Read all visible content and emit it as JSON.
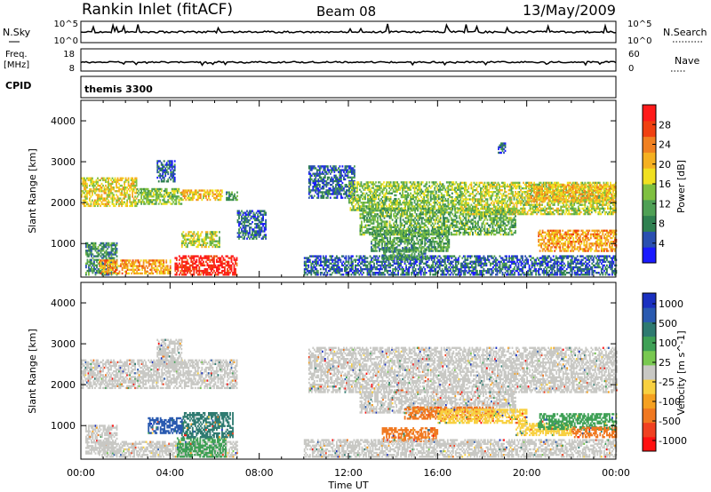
{
  "header": {
    "station": "Rankin Inlet (fitACF)",
    "beam": "Beam 08",
    "date": "13/May/2009"
  },
  "summary_panels": {
    "nsky": {
      "label": "N.Sky",
      "ticks_left": [
        "10^5",
        "10^0"
      ],
      "right_label": "N.Search",
      "ticks_right": [
        "10^5",
        "10^0"
      ]
    },
    "freq": {
      "label_line1": "Freq.",
      "label_line2": "[MHz]",
      "ticks_left": [
        "18",
        "8"
      ],
      "right_label": "Nave",
      "ticks_right": [
        "60",
        "0"
      ]
    },
    "cpid": {
      "label": "CPID",
      "value": "themis 3300"
    }
  },
  "colors": {
    "power_scale": [
      "#1a1aff",
      "#2a4fb0",
      "#2f8050",
      "#4fa055",
      "#7fc040",
      "#f0e020",
      "#f5b020",
      "#f08020",
      "#f04010",
      "#ff1a1a"
    ],
    "velocity_scale": [
      "#ff1010",
      "#f04020",
      "#f07820",
      "#f5a020",
      "#f8d040",
      "#c8c8c4",
      "#78c850",
      "#3ea055",
      "#2e7a70",
      "#2a5ab0",
      "#1a30c0"
    ],
    "ground_scatter": "#c8c8c4"
  },
  "chart_data": [
    {
      "type": "heatmap",
      "title": "Power",
      "ylabel": "Slant Range [km]",
      "xlabel": "",
      "x_ticks": [
        "00:00",
        "04:00",
        "08:00",
        "12:00",
        "16:00",
        "20:00",
        "00:00"
      ],
      "x_range_hours": [
        0,
        24
      ],
      "ylim": [
        180,
        4500
      ],
      "y_ticks": [
        1000,
        2000,
        3000,
        4000
      ],
      "colorbar": {
        "label": "Power [dB]",
        "range": [
          0,
          32
        ],
        "ticks": [
          4,
          8,
          12,
          16,
          20,
          24,
          28
        ]
      },
      "regions": [
        {
          "t0": 0.0,
          "t1": 2.5,
          "r0": 1900,
          "r1": 2600,
          "v": 18
        },
        {
          "t0": 2.5,
          "t1": 4.5,
          "r0": 1950,
          "r1": 2350,
          "v": 14
        },
        {
          "t0": 4.5,
          "t1": 6.3,
          "r0": 2050,
          "r1": 2300,
          "v": 20
        },
        {
          "t0": 6.5,
          "t1": 7.0,
          "r0": 2050,
          "r1": 2250,
          "v": 10
        },
        {
          "t0": 3.4,
          "t1": 4.2,
          "r0": 2500,
          "r1": 3000,
          "v": 6
        },
        {
          "t0": 0.2,
          "t1": 1.6,
          "r0": 220,
          "r1": 1000,
          "v": 9
        },
        {
          "t0": 0.8,
          "t1": 4.0,
          "r0": 250,
          "r1": 600,
          "v": 22
        },
        {
          "t0": 4.2,
          "t1": 7.0,
          "r0": 220,
          "r1": 700,
          "v": 30
        },
        {
          "t0": 4.5,
          "t1": 6.2,
          "r0": 900,
          "r1": 1300,
          "v": 16
        },
        {
          "t0": 7.0,
          "t1": 8.3,
          "r0": 1100,
          "r1": 1800,
          "v": 6
        },
        {
          "t0": 10.2,
          "t1": 12.3,
          "r0": 2100,
          "r1": 2900,
          "v": 6
        },
        {
          "t0": 12.0,
          "t1": 17.0,
          "r0": 1800,
          "r1": 2500,
          "v": 14
        },
        {
          "t0": 12.5,
          "t1": 19.5,
          "r0": 1200,
          "r1": 1850,
          "v": 12
        },
        {
          "t0": 17.0,
          "t1": 24.0,
          "r0": 1700,
          "r1": 2500,
          "v": 16
        },
        {
          "t0": 20.0,
          "t1": 24.0,
          "r0": 2000,
          "r1": 2450,
          "v": 20
        },
        {
          "t0": 13.0,
          "t1": 16.5,
          "r0": 800,
          "r1": 1300,
          "v": 11
        },
        {
          "t0": 20.5,
          "t1": 24.0,
          "r0": 800,
          "r1": 1300,
          "v": 22
        },
        {
          "t0": 10.0,
          "t1": 24.0,
          "r0": 220,
          "r1": 700,
          "v": 6
        },
        {
          "t0": 18.7,
          "t1": 19.0,
          "r0": 3200,
          "r1": 3450,
          "v": 5
        },
        {
          "t0": 13.5,
          "t1": 15.5,
          "r0": 600,
          "r1": 900,
          "v": 10
        }
      ]
    },
    {
      "type": "heatmap",
      "title": "Velocity",
      "ylabel": "Slant Range [km]",
      "xlabel": "Time UT",
      "x_ticks": [
        "00:00",
        "04:00",
        "08:00",
        "12:00",
        "16:00",
        "20:00",
        "00:00"
      ],
      "x_range_hours": [
        0,
        24
      ],
      "ylim": [
        180,
        4500
      ],
      "y_ticks": [
        1000,
        2000,
        3000,
        4000
      ],
      "colorbar": {
        "label": "Velocity [m s^-1]",
        "ticks": [
          "1000",
          "500",
          "100",
          "25",
          "-25",
          "-100",
          "-500",
          "-1000"
        ]
      },
      "regions": [
        {
          "t0": 0.0,
          "t1": 7.0,
          "r0": 1900,
          "r1": 2600,
          "c": "ground"
        },
        {
          "t0": 3.4,
          "t1": 4.5,
          "r0": 2400,
          "r1": 3100,
          "c": "ground"
        },
        {
          "t0": 0.2,
          "t1": 1.6,
          "r0": 300,
          "r1": 1000,
          "c": "ground"
        },
        {
          "t0": 0.8,
          "t1": 7.0,
          "r0": 220,
          "r1": 600,
          "c": "ground"
        },
        {
          "t0": 4.3,
          "t1": 6.5,
          "r0": 220,
          "r1": 700,
          "c": "green"
        },
        {
          "t0": 4.5,
          "t1": 6.8,
          "r0": 700,
          "r1": 1300,
          "c": "teal"
        },
        {
          "t0": 3.0,
          "t1": 4.5,
          "r0": 800,
          "r1": 1200,
          "c": "blue"
        },
        {
          "t0": 10.2,
          "t1": 24.0,
          "r0": 1800,
          "r1": 2900,
          "c": "ground"
        },
        {
          "t0": 12.5,
          "t1": 19.5,
          "r0": 1300,
          "r1": 1800,
          "c": "ground"
        },
        {
          "t0": 14.5,
          "t1": 18.5,
          "r0": 1150,
          "r1": 1450,
          "c": "orange"
        },
        {
          "t0": 13.5,
          "t1": 16.0,
          "r0": 600,
          "r1": 950,
          "c": "orange"
        },
        {
          "t0": 16.0,
          "t1": 20.0,
          "r0": 1050,
          "r1": 1400,
          "c": "yellow"
        },
        {
          "t0": 19.5,
          "t1": 22.0,
          "r0": 750,
          "r1": 1050,
          "c": "yellow"
        },
        {
          "t0": 20.5,
          "t1": 24.0,
          "r0": 900,
          "r1": 1300,
          "c": "green"
        },
        {
          "t0": 22.0,
          "t1": 24.0,
          "r0": 700,
          "r1": 950,
          "c": "orange"
        },
        {
          "t0": 10.0,
          "t1": 24.0,
          "r0": 220,
          "r1": 650,
          "c": "ground"
        }
      ]
    }
  ]
}
